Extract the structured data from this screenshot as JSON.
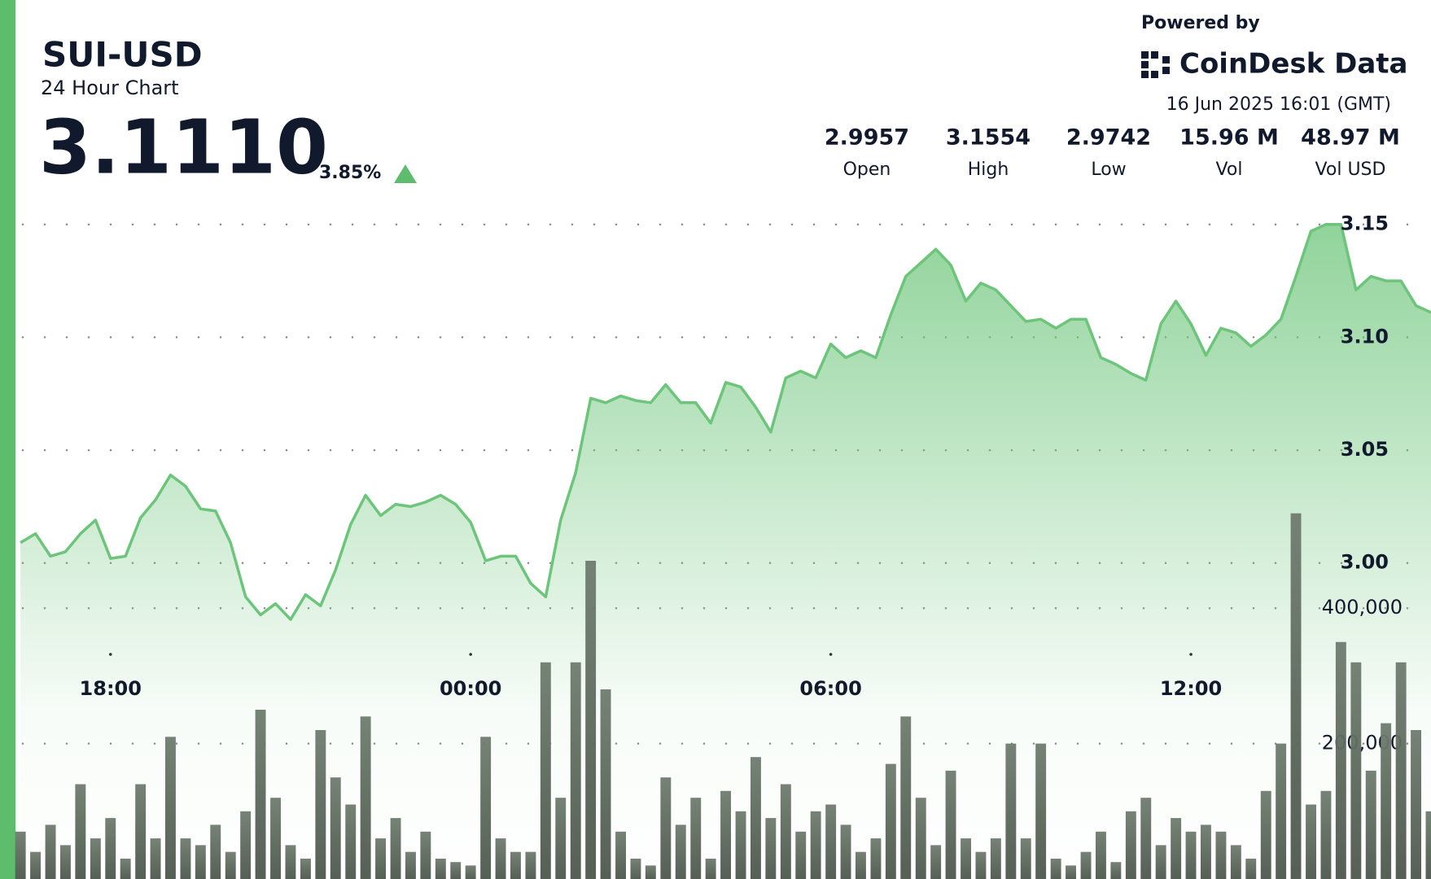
{
  "header": {
    "title": "SUI-USD",
    "subtitle": "24 Hour Chart",
    "price": "3.1110",
    "change": "3.85%",
    "powered_by": "Powered by",
    "brand": "CoinDesk Data",
    "timestamp": "16 Jun 2025 16:01 (GMT)",
    "stats": [
      {
        "value": "2.9957",
        "label": "Open"
      },
      {
        "value": "3.1554",
        "label": "High"
      },
      {
        "value": "2.9742",
        "label": "Low"
      },
      {
        "value": "15.96 M",
        "label": "Vol"
      },
      {
        "value": "48.97 M",
        "label": "Vol USD"
      }
    ]
  },
  "chart_data": {
    "type": "line",
    "x": [
      "16:30",
      "16:45",
      "17:00",
      "17:15",
      "17:30",
      "17:45",
      "18:00",
      "18:15",
      "18:30",
      "18:45",
      "19:00",
      "19:15",
      "19:30",
      "19:45",
      "20:00",
      "20:15",
      "20:30",
      "20:45",
      "21:00",
      "21:15",
      "21:30",
      "21:45",
      "22:00",
      "22:15",
      "22:30",
      "22:45",
      "23:00",
      "23:15",
      "23:30",
      "23:45",
      "00:00",
      "00:15",
      "00:30",
      "00:45",
      "01:00",
      "01:15",
      "01:30",
      "01:45",
      "02:00",
      "02:15",
      "02:30",
      "02:45",
      "03:00",
      "03:15",
      "03:30",
      "03:45",
      "04:00",
      "04:15",
      "04:30",
      "04:45",
      "05:00",
      "05:15",
      "05:30",
      "05:45",
      "06:00",
      "06:15",
      "06:30",
      "06:45",
      "07:00",
      "07:15",
      "07:30",
      "07:45",
      "08:00",
      "08:15",
      "08:30",
      "08:45",
      "09:00",
      "09:15",
      "09:30",
      "09:45",
      "10:00",
      "10:15",
      "10:30",
      "10:45",
      "11:00",
      "11:15",
      "11:30",
      "11:45",
      "12:00",
      "12:15",
      "12:30",
      "12:45",
      "13:00",
      "13:15",
      "13:30",
      "13:45",
      "14:00",
      "14:15",
      "14:30",
      "14:45",
      "15:00",
      "15:15",
      "15:30",
      "15:45",
      "16:00"
    ],
    "xlim": [
      "16:25",
      "16:00"
    ],
    "xticks": [
      "18:00",
      "00:00",
      "06:00",
      "12:00"
    ],
    "ylim": [
      2.86,
      3.16
    ],
    "yticks": [
      {
        "value": 3,
        "label": "3.00"
      },
      {
        "value": 3.05,
        "label": "3.05"
      },
      {
        "value": 3.1,
        "label": "3.10"
      },
      {
        "value": 3.15,
        "label": "3.15"
      }
    ],
    "y2lim": [
      0,
      1000000
    ],
    "y2ticks": [
      {
        "value": 200000,
        "label": "200,000"
      },
      {
        "value": 400000,
        "label": "400,000"
      }
    ],
    "grid": true,
    "series": [
      {
        "type": "line",
        "color": "#6cc57a",
        "values": [
          3.009,
          3.013,
          3.003,
          3.005,
          3.013,
          3.019,
          3.002,
          3.003,
          3.02,
          3.028,
          3.039,
          3.034,
          3.024,
          3.023,
          3.009,
          2.985,
          2.977,
          2.982,
          2.975,
          2.986,
          2.981,
          2.997,
          3.017,
          3.03,
          3.021,
          3.026,
          3.025,
          3.027,
          3.03,
          3.026,
          3.018,
          3.001,
          3.003,
          3.003,
          2.991,
          2.985,
          3.019,
          3.04,
          3.073,
          3.071,
          3.074,
          3.072,
          3.071,
          3.079,
          3.071,
          3.071,
          3.062,
          3.08,
          3.078,
          3.069,
          3.058,
          3.082,
          3.085,
          3.082,
          3.097,
          3.091,
          3.094,
          3.091,
          3.11,
          3.127,
          3.133,
          3.139,
          3.132,
          3.116,
          3.124,
          3.121,
          3.114,
          3.107,
          3.108,
          3.104,
          3.108,
          3.108,
          3.091,
          3.088,
          3.084,
          3.081,
          3.106,
          3.116,
          3.106,
          3.092,
          3.104,
          3.102,
          3.096,
          3.101,
          3.108,
          3.127,
          3.147,
          3.15,
          3.15,
          3.121,
          3.127,
          3.125,
          3.125,
          3.114,
          3.111
        ]
      },
      {
        "type": "bar",
        "axis": "y2",
        "color": "#5f6b5f",
        "values": [
          70000,
          40000,
          80000,
          50000,
          140000,
          60000,
          90000,
          30000,
          140000,
          60000,
          210000,
          60000,
          50000,
          80000,
          40000,
          100000,
          250000,
          120000,
          50000,
          30000,
          220000,
          150000,
          110000,
          240000,
          60000,
          90000,
          40000,
          70000,
          30000,
          25000,
          20000,
          210000,
          60000,
          40000,
          40000,
          320000,
          120000,
          320000,
          470000,
          280000,
          70000,
          30000,
          20000,
          150000,
          80000,
          120000,
          30000,
          130000,
          100000,
          180000,
          90000,
          140000,
          70000,
          100000,
          110000,
          80000,
          40000,
          60000,
          170000,
          240000,
          120000,
          50000,
          160000,
          60000,
          40000,
          60000,
          200000,
          60000,
          200000,
          30000,
          20000,
          40000,
          70000,
          25000,
          100000,
          120000,
          50000,
          90000,
          70000,
          80000,
          70000,
          50000,
          30000,
          130000,
          200000,
          540000,
          110000,
          130000,
          350000,
          320000,
          160000,
          230000,
          320000,
          220000,
          100000
        ]
      }
    ]
  }
}
